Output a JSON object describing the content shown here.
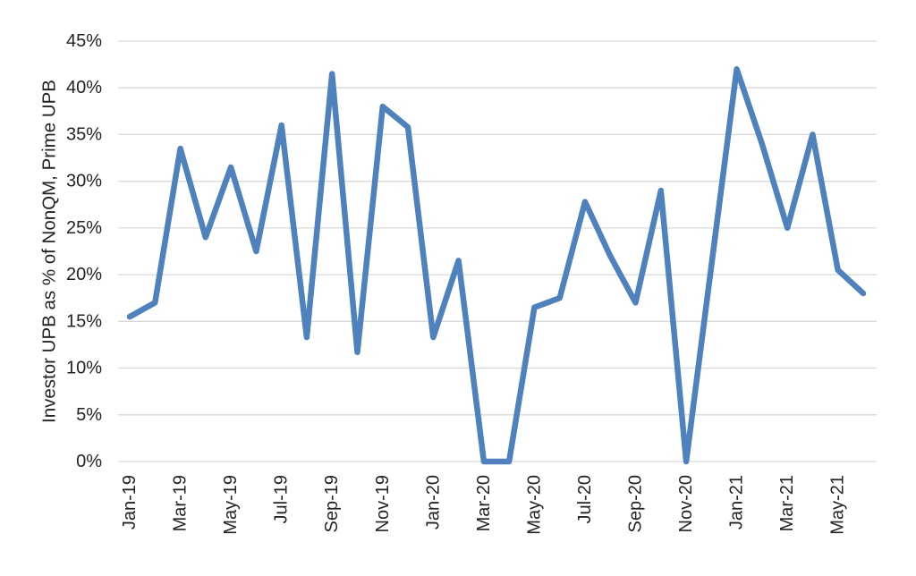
{
  "chart_data": {
    "type": "line",
    "title": "",
    "xlabel": "",
    "ylabel": "Investor UPB as % of NonQM, Prime UPB",
    "x": [
      "Jan-19",
      "Feb-19",
      "Mar-19",
      "Apr-19",
      "May-19",
      "Jun-19",
      "Jul-19",
      "Aug-19",
      "Sep-19",
      "Oct-19",
      "Nov-19",
      "Dec-19",
      "Jan-20",
      "Feb-20",
      "Mar-20",
      "Apr-20",
      "May-20",
      "Jun-20",
      "Jul-20",
      "Aug-20",
      "Sep-20",
      "Oct-20",
      "Nov-20",
      "Dec-20",
      "Jan-21",
      "Feb-21",
      "Mar-21",
      "Apr-21",
      "May-21",
      "Jun-21"
    ],
    "series": [
      {
        "name": "Investor UPB as % of NonQM, Prime UPB",
        "values": [
          15.5,
          17,
          33.5,
          24,
          31.5,
          22.5,
          36,
          13.3,
          41.5,
          11.7,
          38,
          35.8,
          13.3,
          21.5,
          0,
          0,
          16.5,
          17.5,
          27.8,
          22,
          17,
          29,
          0,
          21,
          42,
          34,
          25,
          35,
          20.5,
          18
        ]
      }
    ],
    "x_tick_labels": [
      "Jan-19",
      "Mar-19",
      "May-19",
      "Jul-19",
      "Sep-19",
      "Nov-19",
      "Jan-20",
      "Mar-20",
      "May-20",
      "Jul-20",
      "Sep-20",
      "Nov-20",
      "Jan-21",
      "Mar-21",
      "May-21"
    ],
    "x_tick_every": 2,
    "y_ticks": [
      0,
      5,
      10,
      15,
      20,
      25,
      30,
      35,
      40,
      45
    ],
    "y_tick_suffix": "%",
    "ylim": [
      0,
      45
    ],
    "grid": "horizontal",
    "legend": "none",
    "colors": {
      "line": "#4F81BD",
      "grid": "#D9D9D9",
      "text": "#232323",
      "background": "#FFFFFF"
    }
  }
}
